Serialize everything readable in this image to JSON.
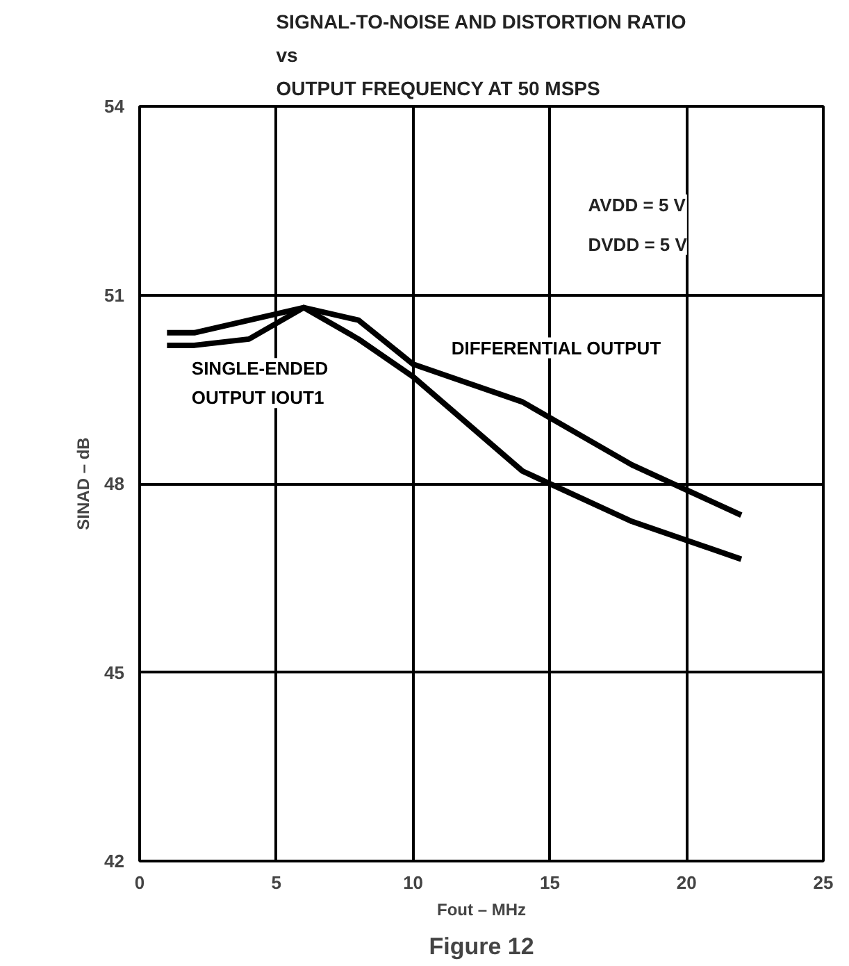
{
  "chart_data": {
    "type": "line",
    "title": "SIGNAL-TO-NOISE AND DISTORTION RATIO\nvs\nOUTPUT FREQUENCY AT 50 MSPS",
    "xlabel": "Fout – MHz",
    "ylabel": "SINAD – dB",
    "xlim": [
      0,
      25
    ],
    "xticks": [
      0,
      5,
      10,
      15,
      20,
      25
    ],
    "ylim": [
      42,
      54
    ],
    "yticks": [
      42,
      45,
      48,
      51,
      54
    ],
    "grid": true,
    "marker": "none",
    "line_style": "solid",
    "series": [
      {
        "name": "DIFFERENTIAL OUTPUT",
        "color": "#000000",
        "x": [
          1,
          2,
          6,
          8,
          10,
          14,
          18,
          22
        ],
        "values": [
          50.4,
          50.4,
          50.8,
          50.6,
          49.9,
          49.3,
          48.3,
          47.5
        ]
      },
      {
        "name": "SINGLE-ENDED\nOUTPUT IOUT1",
        "color": "#000000",
        "x": [
          1,
          2,
          4,
          6,
          8,
          10,
          14,
          18,
          22
        ],
        "values": [
          50.2,
          50.2,
          50.3,
          50.8,
          50.3,
          49.7,
          48.2,
          47.4,
          46.8
        ]
      }
    ],
    "annotations": [
      "AVDD = 5 V\nDVDD = 5 V",
      "Figure 12"
    ]
  }
}
